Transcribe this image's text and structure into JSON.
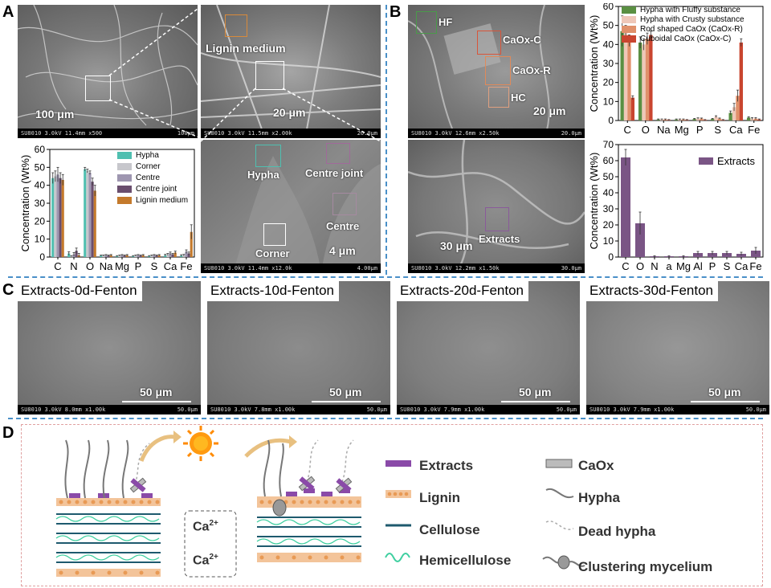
{
  "panels": {
    "A": "A",
    "B": "B",
    "C": "C",
    "D": "D"
  },
  "panelA": {
    "sem1": {
      "scale": "100 μm",
      "bar_left": "SU8010 3.0kV 11.4mm x500",
      "bar_right": "100μm"
    },
    "sem2": {
      "scale": "20 μm",
      "label": "Lignin medium",
      "bar_left": "SU8010 3.0kV 11.5mm x2.00k",
      "bar_right": "20.0μm"
    },
    "sem3": {
      "scale": "4 μm",
      "labels": {
        "hypha": "Hypha",
        "centre_joint": "Centre joint",
        "centre": "Centre",
        "corner": "Corner"
      },
      "bar_left": "SU8010 3.0kV 11.4mm x12.0k",
      "bar_right": "4.00μm"
    }
  },
  "panelB": {
    "sem1": {
      "scale": "20 μm",
      "labels": {
        "hf": "HF",
        "caox_c": "CaOx-C",
        "caox_r": "CaOx-R",
        "hc": "HC"
      },
      "bar_left": "SU8010 3.0kV 12.6mm x2.50k",
      "bar_right": "20.0μm"
    },
    "sem2": {
      "scale": "30 μm",
      "label": "Extracts",
      "bar_left": "SU8010 3.0kV 12.2mm x1.50k",
      "bar_right": "30.0μm"
    }
  },
  "panelC": [
    {
      "caption": "Extracts-0d-Fenton",
      "scale": "50 μm",
      "bar_left": "SU8010 3.0kV 8.0mm x1.00k",
      "bar_right": "50.0μm"
    },
    {
      "caption": "Extracts-10d-Fenton",
      "scale": "50 μm",
      "bar_left": "SU8010 3.0kV 7.8mm x1.00k",
      "bar_right": "50.0μm"
    },
    {
      "caption": "Extracts-20d-Fenton",
      "scale": "50 μm",
      "bar_left": "SU8010 3.0kV 7.9mm x1.00k",
      "bar_right": "50.0μm"
    },
    {
      "caption": "Extracts-30d-Fenton",
      "scale": "50 μm",
      "bar_left": "SU8010 3.0kV 7.9mm x1.00k",
      "bar_right": "50.0μm"
    }
  ],
  "panelD": {
    "ca1": "Ca",
    "ca2": "Ca",
    "ca_charge": "2+",
    "legend": {
      "extracts": "Extracts",
      "lignin": "Lignin",
      "cellulose": "Cellulose",
      "hemicellulose": "Hemicellulose",
      "caox": "CaOx",
      "hypha": "Hypha",
      "dead_hypha": "Dead hypha",
      "clustering": "Clustering mycelium"
    }
  },
  "chart_data": [
    {
      "type": "bar",
      "ylabel": "Concentration (Wt%)",
      "ylim": [
        0,
        60
      ],
      "yticks": [
        0,
        10,
        20,
        30,
        40,
        50,
        60
      ],
      "categories": [
        "C",
        "N",
        "O",
        "Na",
        "Mg",
        "P",
        "S",
        "Ca",
        "Fe"
      ],
      "legend_position": "top-right",
      "series": [
        {
          "name": "Hypha",
          "color": "#4fbfb0",
          "values": [
            44,
            2,
            49,
            0.8,
            0.5,
            0.5,
            0.5,
            1,
            0.8
          ],
          "errors": [
            3,
            1,
            1,
            0.3,
            0.3,
            0.3,
            0.3,
            0.5,
            0.5
          ]
        },
        {
          "name": "Corner",
          "color": "#c7c7cc",
          "values": [
            45,
            0.5,
            48,
            0.8,
            0.8,
            0.8,
            0.8,
            1.5,
            1
          ],
          "errors": [
            3,
            0.3,
            1,
            0.3,
            0.3,
            0.3,
            0.3,
            0.5,
            0.5
          ]
        },
        {
          "name": "Centre",
          "color": "#9e96b0",
          "values": [
            46,
            1.5,
            47,
            1,
            1,
            1,
            1,
            2,
            3
          ],
          "errors": [
            4,
            1,
            1,
            0.4,
            0.4,
            0.4,
            0.4,
            0.8,
            1
          ]
        },
        {
          "name": "Centre joint",
          "color": "#6a4e6e",
          "values": [
            44,
            3.5,
            42,
            0.8,
            0.8,
            0.8,
            0.8,
            1.5,
            2
          ],
          "errors": [
            3,
            1.5,
            2,
            0.3,
            0.3,
            0.3,
            0.3,
            0.5,
            0.8
          ]
        },
        {
          "name": "Lignin medium",
          "color": "#c47a2c",
          "values": [
            43,
            1,
            37,
            1,
            1,
            1,
            1,
            2.5,
            14
          ],
          "errors": [
            3,
            1,
            3,
            0.4,
            0.4,
            0.4,
            0.4,
            0.8,
            4
          ]
        }
      ]
    },
    {
      "type": "bar",
      "ylabel": "Concentration (Wt%)",
      "ylim": [
        0,
        60
      ],
      "yticks": [
        0,
        10,
        20,
        30,
        40,
        50,
        60
      ],
      "categories": [
        "C",
        "O",
        "Na",
        "Mg",
        "P",
        "S",
        "Ca",
        "Fe"
      ],
      "legend_position": "top-right",
      "series": [
        {
          "name": "Hypha with Fluffy substance",
          "color": "#5a8f42",
          "values": [
            47,
            41,
            0.5,
            0.5,
            0.8,
            0.8,
            4,
            1.5
          ],
          "errors": [
            8,
            3,
            0.3,
            0.3,
            0.3,
            0.3,
            1,
            0.5
          ]
        },
        {
          "name": "Hypha with Crusty substance",
          "color": "#efc7b8",
          "values": [
            46,
            40,
            0.5,
            0.5,
            1,
            2,
            7,
            1
          ],
          "errors": [
            4,
            3,
            0.3,
            0.3,
            0.4,
            0.5,
            2,
            0.5
          ]
        },
        {
          "name": "Rod shaped CaOx (CaOx-R)",
          "color": "#e0906a",
          "values": [
            42,
            43,
            0.5,
            0.5,
            1,
            1,
            13,
            1
          ],
          "errors": [
            3,
            3,
            0.3,
            0.3,
            0.3,
            0.3,
            3,
            0.5
          ]
        },
        {
          "name": "Cuboidal CaOx (CaOx-C)",
          "color": "#c9452f",
          "values": [
            12,
            45,
            0.3,
            0.3,
            0.3,
            0.3,
            41,
            0.5
          ],
          "errors": [
            1,
            2,
            0.2,
            0.2,
            0.2,
            0.2,
            2,
            0.3
          ]
        }
      ]
    },
    {
      "type": "bar",
      "ylabel": "Concentration (Wt%)",
      "ylim": [
        0,
        70
      ],
      "yticks": [
        0,
        10,
        20,
        30,
        40,
        50,
        60,
        70
      ],
      "categories": [
        "C",
        "O",
        "N",
        "Na",
        "Mg",
        "Al",
        "P",
        "S",
        "Ca",
        "Fe"
      ],
      "tick_labels": [
        "C",
        "O",
        "N",
        "a",
        "Mg",
        "Al",
        "P",
        "S",
        "Ca",
        "Fe"
      ],
      "legend_position": "top-right",
      "series": [
        {
          "name": "Extracts",
          "color": "#7a5585",
          "values": [
            62,
            21,
            0.5,
            0.5,
            0.5,
            2.5,
            2.5,
            2.5,
            2,
            4
          ],
          "errors": [
            5,
            7,
            0.3,
            0.3,
            0.3,
            1,
            1,
            1,
            1,
            2
          ]
        }
      ]
    }
  ]
}
